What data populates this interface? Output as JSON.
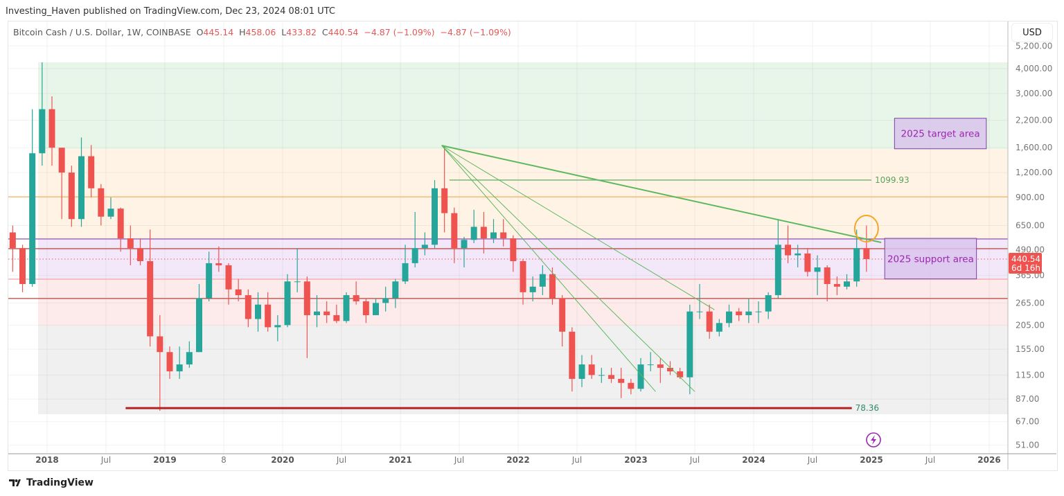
{
  "header": {
    "publisher": "Investing_Haven published on TradingView.com, Dec 23, 2024 08:01 UTC",
    "symbol": "Bitcoin Cash / U.S. Dollar, 1W, COINBASE",
    "ohlc": {
      "o_label": "O",
      "o": "445.14",
      "h_label": "H",
      "h": "458.06",
      "l_label": "L",
      "l": "433.82",
      "c_label": "C",
      "c": "440.54",
      "change": "−4.87 (−1.09%)",
      "change2": "−4.87 (−1.09%)"
    },
    "currency": "USD"
  },
  "footer": {
    "brand": "TradingView"
  },
  "chart_data": {
    "type": "candlestick",
    "yscale": "log",
    "ylim": [
      45,
      5600
    ],
    "grid": true,
    "colors": {
      "up": "#26a69a",
      "down": "#ef5350",
      "trend": "#5cb85c",
      "level_orange": "#f0b560",
      "level_purple": "#9c5fb5",
      "level_red": "#c0504d",
      "support_line": "#b22222",
      "annotation": "#9c27b0",
      "circle": "#f5a623"
    },
    "y_ticks": [
      "5,200.00",
      "4,000.00",
      "3,000.00",
      "2,200.00",
      "1,600.00",
      "1,200.00",
      "900.00",
      "650.00",
      "490.00",
      "365.00",
      "265.00",
      "205.00",
      "155.00",
      "115.00",
      "87.00",
      "67.00",
      "51.00"
    ],
    "y_tick_values": [
      5200,
      4000,
      3000,
      2200,
      1600,
      1200,
      900,
      650,
      490,
      365,
      265,
      205,
      155,
      115,
      87,
      67,
      51
    ],
    "x_ticks": [
      {
        "date": "2018-01",
        "label": "2018",
        "bold": true
      },
      {
        "date": "2018-07",
        "label": "Jul"
      },
      {
        "date": "2019-01",
        "label": "2019",
        "bold": true
      },
      {
        "date": "2019-07",
        "label": "8"
      },
      {
        "date": "2020-01",
        "label": "2020",
        "bold": true
      },
      {
        "date": "2020-07",
        "label": "Jul"
      },
      {
        "date": "2021-01",
        "label": "2021",
        "bold": true
      },
      {
        "date": "2021-07",
        "label": "Jul"
      },
      {
        "date": "2022-01",
        "label": "2022",
        "bold": true
      },
      {
        "date": "2022-07",
        "label": "Jul"
      },
      {
        "date": "2023-01",
        "label": "2023",
        "bold": true
      },
      {
        "date": "2023-07",
        "label": "Jul"
      },
      {
        "date": "2024-01",
        "label": "2024",
        "bold": true
      },
      {
        "date": "2024-07",
        "label": "Jul"
      },
      {
        "date": "2025-01",
        "label": "2025",
        "bold": true
      },
      {
        "date": "2025-07",
        "label": "Jul"
      },
      {
        "date": "2026-01",
        "label": "2026",
        "bold": true
      }
    ],
    "candles_columns": [
      "date",
      "open",
      "high",
      "low",
      "close"
    ],
    "candles": [
      [
        "2017-09",
        600,
        650,
        380,
        500
      ],
      [
        "2017-10",
        500,
        520,
        300,
        330
      ],
      [
        "2017-11",
        330,
        2500,
        320,
        1500
      ],
      [
        "2017-12",
        1500,
        4300,
        1300,
        2500
      ],
      [
        "2018-01",
        2500,
        2900,
        1300,
        1600
      ],
      [
        "2018-02",
        1600,
        1600,
        700,
        1200
      ],
      [
        "2018-03",
        1200,
        1300,
        640,
        700
      ],
      [
        "2018-04",
        700,
        1800,
        640,
        1450
      ],
      [
        "2018-05",
        1450,
        1650,
        900,
        1000
      ],
      [
        "2018-06",
        1000,
        1050,
        650,
        720
      ],
      [
        "2018-07",
        720,
        900,
        700,
        790
      ],
      [
        "2018-08",
        790,
        800,
        480,
        560
      ],
      [
        "2018-09",
        560,
        650,
        410,
        500
      ],
      [
        "2018-10",
        500,
        560,
        410,
        430
      ],
      [
        "2018-11",
        430,
        620,
        160,
        180
      ],
      [
        "2018-12",
        180,
        230,
        76,
        150
      ],
      [
        "2019-01",
        150,
        160,
        110,
        120
      ],
      [
        "2019-02",
        120,
        160,
        110,
        130
      ],
      [
        "2019-03",
        130,
        170,
        125,
        150
      ],
      [
        "2019-04",
        150,
        330,
        150,
        280
      ],
      [
        "2019-05",
        280,
        480,
        270,
        420
      ],
      [
        "2019-06",
        420,
        510,
        380,
        410
      ],
      [
        "2019-07",
        410,
        420,
        260,
        310
      ],
      [
        "2019-08",
        310,
        350,
        270,
        290
      ],
      [
        "2019-09",
        290,
        310,
        200,
        220
      ],
      [
        "2019-10",
        220,
        300,
        190,
        260
      ],
      [
        "2019-11",
        260,
        300,
        190,
        200
      ],
      [
        "2019-12",
        200,
        230,
        170,
        205
      ],
      [
        "2020-01",
        205,
        370,
        200,
        340
      ],
      [
        "2020-02",
        340,
        500,
        300,
        340
      ],
      [
        "2020-03",
        340,
        360,
        140,
        230
      ],
      [
        "2020-04",
        230,
        290,
        200,
        240
      ],
      [
        "2020-05",
        240,
        270,
        210,
        230
      ],
      [
        "2020-06",
        230,
        260,
        210,
        215
      ],
      [
        "2020-07",
        215,
        300,
        210,
        290
      ],
      [
        "2020-08",
        290,
        340,
        260,
        270
      ],
      [
        "2020-09",
        270,
        280,
        210,
        230
      ],
      [
        "2020-10",
        230,
        280,
        230,
        265
      ],
      [
        "2020-11",
        265,
        320,
        240,
        280
      ],
      [
        "2020-12",
        280,
        350,
        250,
        340
      ],
      [
        "2021-01",
        340,
        520,
        330,
        420
      ],
      [
        "2021-02",
        420,
        760,
        400,
        500
      ],
      [
        "2021-03",
        500,
        600,
        460,
        520
      ],
      [
        "2021-04",
        520,
        1100,
        500,
        1000
      ],
      [
        "2021-05",
        1000,
        1640,
        600,
        750
      ],
      [
        "2021-06",
        750,
        800,
        420,
        500
      ],
      [
        "2021-07",
        500,
        570,
        400,
        550
      ],
      [
        "2021-08",
        550,
        780,
        530,
        640
      ],
      [
        "2021-09",
        640,
        760,
        470,
        560
      ],
      [
        "2021-10",
        560,
        700,
        530,
        600
      ],
      [
        "2021-11",
        600,
        700,
        510,
        560
      ],
      [
        "2021-12",
        560,
        580,
        380,
        430
      ],
      [
        "2022-01",
        430,
        440,
        260,
        300
      ],
      [
        "2022-02",
        300,
        360,
        270,
        320
      ],
      [
        "2022-03",
        320,
        410,
        290,
        370
      ],
      [
        "2022-04",
        370,
        400,
        260,
        280
      ],
      [
        "2022-05",
        280,
        290,
        160,
        190
      ],
      [
        "2022-06",
        190,
        200,
        95,
        110
      ],
      [
        "2022-07",
        110,
        145,
        100,
        130
      ],
      [
        "2022-08",
        130,
        145,
        110,
        115
      ],
      [
        "2022-09",
        115,
        125,
        105,
        115
      ],
      [
        "2022-10",
        115,
        125,
        105,
        110
      ],
      [
        "2022-11",
        110,
        125,
        88,
        105
      ],
      [
        "2022-12",
        105,
        110,
        92,
        98
      ],
      [
        "2023-01",
        98,
        140,
        95,
        130
      ],
      [
        "2023-02",
        130,
        150,
        120,
        130
      ],
      [
        "2023-03",
        130,
        140,
        105,
        125
      ],
      [
        "2023-04",
        125,
        135,
        115,
        120
      ],
      [
        "2023-05",
        120,
        125,
        110,
        112
      ],
      [
        "2023-06",
        112,
        260,
        92,
        240
      ],
      [
        "2023-07",
        240,
        330,
        220,
        240
      ],
      [
        "2023-08",
        240,
        260,
        175,
        190
      ],
      [
        "2023-09",
        190,
        220,
        180,
        210
      ],
      [
        "2023-10",
        210,
        260,
        200,
        240
      ],
      [
        "2023-11",
        240,
        250,
        215,
        230
      ],
      [
        "2023-12",
        230,
        280,
        210,
        240
      ],
      [
        "2024-01",
        240,
        270,
        210,
        240
      ],
      [
        "2024-02",
        240,
        300,
        220,
        290
      ],
      [
        "2024-03",
        290,
        700,
        280,
        520
      ],
      [
        "2024-04",
        520,
        650,
        420,
        460
      ],
      [
        "2024-05",
        460,
        520,
        400,
        470
      ],
      [
        "2024-06",
        470,
        500,
        360,
        380
      ],
      [
        "2024-07",
        380,
        460,
        290,
        400
      ],
      [
        "2024-08",
        400,
        410,
        270,
        330
      ],
      [
        "2024-09",
        330,
        360,
        290,
        320
      ],
      [
        "2024-10",
        320,
        370,
        310,
        340
      ],
      [
        "2024-11",
        340,
        620,
        320,
        500
      ],
      [
        "2024-12",
        500,
        650,
        380,
        440.54
      ]
    ],
    "zones": [
      {
        "name": "green-zone",
        "from": 4300,
        "to": 1578,
        "color": "#e8f5e9"
      },
      {
        "name": "orange-zone",
        "from": 1578,
        "to": 556,
        "color": "#fff3e6"
      },
      {
        "name": "purple-zone",
        "from": 556,
        "to": 349,
        "color": "#f3e8fa"
      },
      {
        "name": "pink-zone",
        "from": 349,
        "to": 204,
        "color": "#fdeaea"
      },
      {
        "name": "gray-zone",
        "from": 204,
        "to": 73,
        "color": "#f0f0f0"
      }
    ],
    "levels": [
      {
        "name": "orange-level",
        "price": 906,
        "color": "#f0b560"
      },
      {
        "name": "purple-level",
        "price": 556,
        "color": "#9c5fb5"
      },
      {
        "name": "red-level",
        "price": 497,
        "color": "#c0504d"
      },
      {
        "name": "pink-level",
        "price": 349,
        "color": "#f2a5a5"
      },
      {
        "name": "dark-red-level",
        "price": 279,
        "color": "#b5443f"
      }
    ],
    "last_price": {
      "value": "440.54",
      "countdown": "6d 16h",
      "price": 440.54
    },
    "trendlines": [
      {
        "name": "main-downtrend",
        "from": [
          "2021-05",
          1640
        ],
        "to": [
          "2025-02",
          534
        ],
        "width": 2
      },
      {
        "name": "fan-line-1",
        "from": [
          "2021-05",
          1640
        ],
        "to": [
          "2023-07",
          95
        ],
        "width": 1
      },
      {
        "name": "fan-line-2",
        "from": [
          "2021-05",
          1640
        ],
        "to": [
          "2023-03",
          95
        ],
        "width": 1
      },
      {
        "name": "fan-line-3",
        "from": [
          "2021-05",
          1640
        ],
        "to": [
          "2023-09",
          245
        ],
        "width": 1
      }
    ],
    "horizontal_annotations": [
      {
        "name": "level-1099",
        "price": 1099.93,
        "label": "1099.93",
        "from": "2021-06",
        "to": "2025-01",
        "color": "#6ab46a",
        "label_color": "#5aa35a"
      },
      {
        "name": "support-78",
        "price": 78.36,
        "label": "78.36",
        "from": "2018-09",
        "to": "2024-11",
        "color": "#b22222",
        "label_color": "#2e8b6e"
      }
    ],
    "annotation_boxes": [
      {
        "name": "target-area",
        "label": "2025 target area",
        "top": 2250,
        "bottom": 1580,
        "from": "2025-03",
        "to": "2025-12"
      },
      {
        "name": "support-area",
        "label": "2025 support area",
        "top": 560,
        "bottom": 350,
        "from": "2025-02",
        "to": "2025-11"
      }
    ],
    "highlight_circle": {
      "date": "2024-12",
      "price": 560
    }
  }
}
